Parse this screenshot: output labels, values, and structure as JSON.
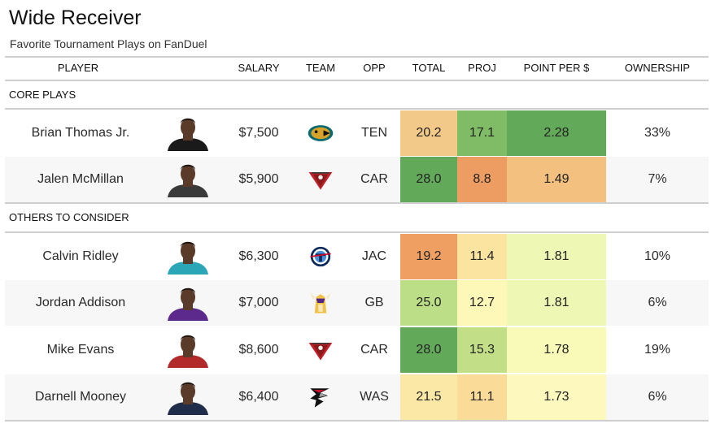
{
  "title": "Wide Receiver",
  "subtitle": "Favorite Tournament Plays on FanDuel",
  "columns": {
    "player": "PLAYER",
    "salary": "SALARY",
    "team": "TEAM",
    "opp": "OPP",
    "total": "TOTAL",
    "proj": "PROJ",
    "ppd": "POINT PER $",
    "ownership": "OWNERSHIP"
  },
  "sections": [
    {
      "label": "CORE PLAYS",
      "rows": [
        {
          "player": "Brian Thomas Jr.",
          "salary": "$7,500",
          "team": "jaguars-logo",
          "opp": "TEN",
          "total": "20.2",
          "proj": "17.1",
          "ppd": "2.28",
          "ownership": "33%",
          "total_color": "#f3c98a",
          "proj_color": "#7fbc65",
          "ppd_color": "#63a95a",
          "jersey": "#1a1a1a"
        },
        {
          "player": "Jalen McMillan",
          "salary": "$5,900",
          "team": "buccaneers-logo",
          "opp": "CAR",
          "total": "28.0",
          "proj": "8.8",
          "ppd": "1.49",
          "ownership": "7%",
          "total_color": "#63a95a",
          "proj_color": "#ee9d62",
          "ppd_color": "#f3c080",
          "jersey": "#3a3a3a"
        }
      ]
    },
    {
      "label": "OTHERS TO CONSIDER",
      "rows": [
        {
          "player": "Calvin Ridley",
          "salary": "$6,300",
          "team": "titans-logo",
          "opp": "JAC",
          "total": "19.2",
          "proj": "11.4",
          "ppd": "1.81",
          "ownership": "10%",
          "total_color": "#ef9f62",
          "proj_color": "#fbe3a0",
          "ppd_color": "#eef7b4",
          "jersey": "#2aa6b6"
        },
        {
          "player": "Jordan Addison",
          "salary": "$7,000",
          "team": "vikings-logo",
          "opp": "GB",
          "total": "25.0",
          "proj": "12.7",
          "ppd": "1.81",
          "ownership": "6%",
          "total_color": "#bcde86",
          "proj_color": "#fdf8b8",
          "ppd_color": "#eef7b4",
          "jersey": "#5b2a8c"
        },
        {
          "player": "Mike Evans",
          "salary": "$8,600",
          "team": "buccaneers-logo",
          "opp": "CAR",
          "total": "28.0",
          "proj": "15.3",
          "ppd": "1.78",
          "ownership": "19%",
          "total_color": "#63a95a",
          "proj_color": "#c2df88",
          "ppd_color": "#f9f9b8",
          "jersey": "#b22a2a"
        },
        {
          "player": "Darnell Mooney",
          "salary": "$6,400",
          "team": "falcons-logo",
          "opp": "WAS",
          "total": "21.5",
          "proj": "11.1",
          "ppd": "1.73",
          "ownership": "6%",
          "total_color": "#fbe7a6",
          "proj_color": "#fadb98",
          "ppd_color": "#fdf8bd",
          "jersey": "#1f2d4a"
        }
      ]
    }
  ]
}
